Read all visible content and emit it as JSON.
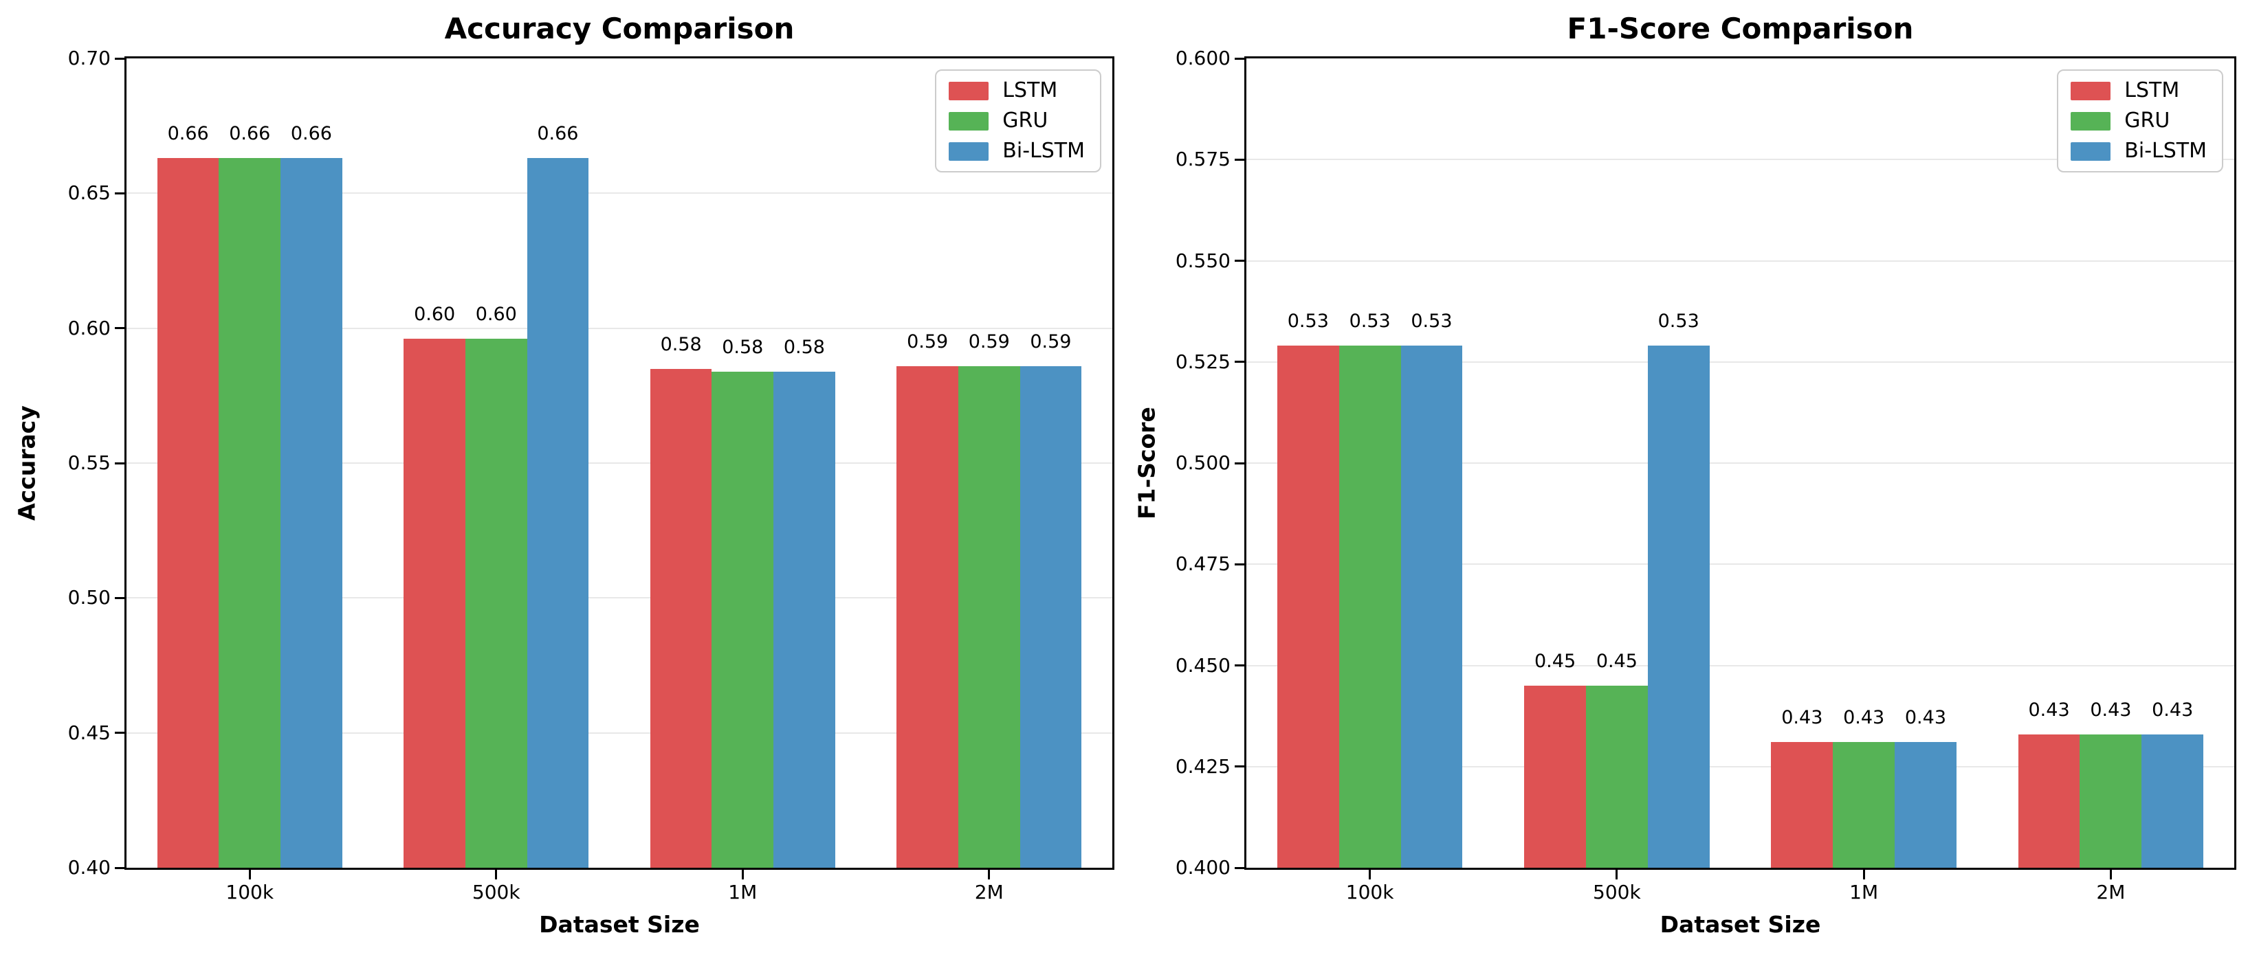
{
  "figure": {
    "background": "#ffffff",
    "text_color": "#000000",
    "grid_color": "#e8e8e8",
    "spine_color": "#000000"
  },
  "chart_data": [
    {
      "type": "bar",
      "title": "Accuracy Comparison",
      "xlabel": "Dataset Size",
      "ylabel": "Accuracy",
      "ylim": [
        0.4,
        0.7
      ],
      "yticks": [
        "0.70",
        "0.65",
        "0.60",
        "0.55",
        "0.50",
        "0.45",
        "0.40"
      ],
      "categories": [
        "100k",
        "500k",
        "1M",
        "2M"
      ],
      "grid": "y-only",
      "legend_position": "upper right",
      "series": [
        {
          "name": "LSTM",
          "color": "#de5253",
          "values": [
            0.663,
            0.596,
            0.585,
            0.586
          ],
          "bar_labels": [
            "0.66",
            "0.60",
            "0.58",
            "0.59"
          ]
        },
        {
          "name": "GRU",
          "color": "#56b356",
          "values": [
            0.663,
            0.596,
            0.584,
            0.586
          ],
          "bar_labels": [
            "0.66",
            "0.60",
            "0.58",
            "0.59"
          ]
        },
        {
          "name": "Bi-LSTM",
          "color": "#4c92c3",
          "values": [
            0.663,
            0.663,
            0.584,
            0.586
          ],
          "bar_labels": [
            "0.66",
            "0.66",
            "0.58",
            "0.59"
          ]
        }
      ]
    },
    {
      "type": "bar",
      "title": "F1-Score Comparison",
      "xlabel": "Dataset Size",
      "ylabel": "F1-Score",
      "ylim": [
        0.4,
        0.6
      ],
      "yticks": [
        "0.600",
        "0.575",
        "0.550",
        "0.525",
        "0.500",
        "0.475",
        "0.450",
        "0.425",
        "0.400"
      ],
      "categories": [
        "100k",
        "500k",
        "1M",
        "2M"
      ],
      "grid": "y-only",
      "legend_position": "upper right",
      "series": [
        {
          "name": "LSTM",
          "color": "#de5253",
          "values": [
            0.529,
            0.445,
            0.431,
            0.433
          ],
          "bar_labels": [
            "0.53",
            "0.45",
            "0.43",
            "0.43"
          ]
        },
        {
          "name": "GRU",
          "color": "#56b356",
          "values": [
            0.529,
            0.445,
            0.431,
            0.433
          ],
          "bar_labels": [
            "0.53",
            "0.45",
            "0.43",
            "0.43"
          ]
        },
        {
          "name": "Bi-LSTM",
          "color": "#4c92c3",
          "values": [
            0.529,
            0.529,
            0.431,
            0.433
          ],
          "bar_labels": [
            "0.53",
            "0.53",
            "0.43",
            "0.43"
          ]
        }
      ]
    }
  ]
}
